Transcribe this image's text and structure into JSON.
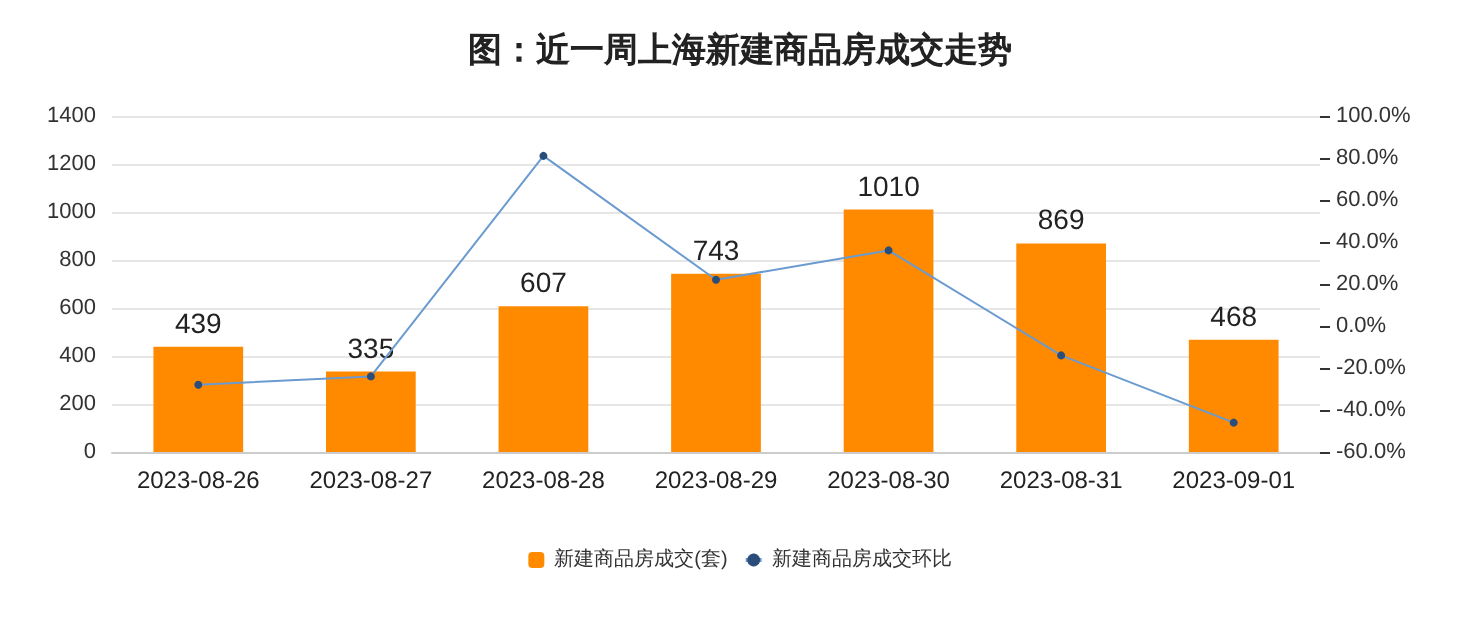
{
  "chart_data": {
    "type": "bar",
    "title": "图：近一周上海新建商品房成交走势",
    "categories": [
      "2023-08-26",
      "2023-08-27",
      "2023-08-28",
      "2023-08-29",
      "2023-08-30",
      "2023-08-31",
      "2023-09-01"
    ],
    "series": [
      {
        "name": "新建商品房成交(套)",
        "color": "#ff8a00",
        "values": [
          439,
          335,
          607,
          743,
          1010,
          869,
          468
        ],
        "data_labels": true
      },
      {
        "name": "新建商品房成交环比",
        "type": "line",
        "axis": "y2",
        "color": "#6a9bd0",
        "marker": "circle",
        "values": [
          -28,
          -24,
          81,
          22,
          36,
          -14,
          -46
        ]
      }
    ],
    "ylim": [
      0,
      1400
    ],
    "yticks": [
      0,
      200,
      400,
      600,
      800,
      1000,
      1200,
      1400
    ],
    "y2lim": [
      -60,
      100
    ],
    "y2ticks": [
      {
        "value": -60,
        "label": "-60.0%"
      },
      {
        "value": -40,
        "label": "-40.0%"
      },
      {
        "value": -20,
        "label": "-20.0%"
      },
      {
        "value": 0,
        "label": "0.0%"
      },
      {
        "value": 20,
        "label": "20.0%"
      },
      {
        "value": 40,
        "label": "40.0%"
      },
      {
        "value": 60,
        "label": "60.0%"
      },
      {
        "value": 80,
        "label": "80.0%"
      },
      {
        "value": 100,
        "label": "100.0%"
      }
    ],
    "grid": "y",
    "legend": "bottom"
  }
}
